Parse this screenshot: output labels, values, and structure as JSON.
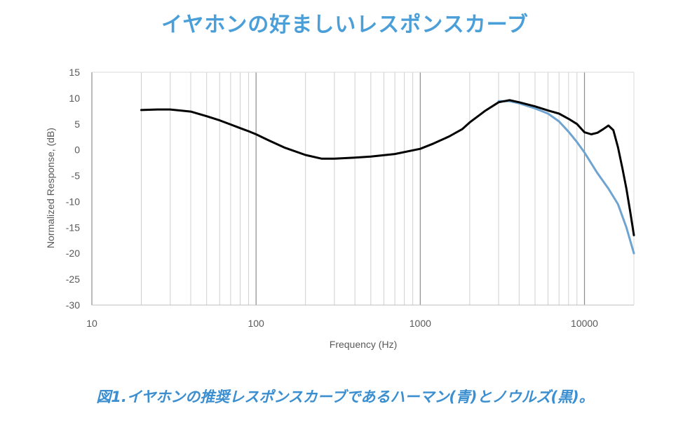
{
  "title": "イヤホンの好ましいレスポンスカーブ",
  "caption": "図1.イヤホンの推奨レスポンスカーブであるハーマン(青)とノウルズ(黒)。",
  "chart_data": {
    "type": "line",
    "xscale": "log",
    "xlim": [
      10,
      20000
    ],
    "ylim": [
      -30,
      15
    ],
    "xticks": [
      10,
      100,
      1000,
      10000
    ],
    "xtick_labels": [
      "10",
      "100",
      "1000",
      "10000"
    ],
    "yticks": [
      15,
      10,
      5,
      0,
      -5,
      -10,
      -15,
      -20,
      -25,
      -30
    ],
    "ytick_labels": [
      "15",
      "10",
      "5",
      "0",
      "-5",
      "-10",
      "-15",
      "-20",
      "-25",
      "-30"
    ],
    "xlabel": "Frequency (Hz)",
    "ylabel": "Normalized Response, (dB)",
    "grid": "vertical log grid",
    "legend": "none",
    "series": [
      {
        "color": "#6fa3d0",
        "x": [
          3000,
          3500,
          4000,
          5000,
          6000,
          7000,
          8000,
          9000,
          10000,
          12000,
          14000,
          16000,
          18000,
          20000
        ],
        "y": [
          9.4,
          9.4,
          9.0,
          8.0,
          7.0,
          5.5,
          3.5,
          1.5,
          -0.5,
          -4.5,
          -7.5,
          -10.5,
          -15.0,
          -20.0
        ]
      },
      {
        "color": "#000000",
        "x": [
          20,
          25,
          30,
          40,
          50,
          60,
          70,
          80,
          90,
          100,
          120,
          150,
          200,
          250,
          300,
          400,
          500,
          700,
          1000,
          1200,
          1500,
          1800,
          2000,
          2500,
          3000,
          3500,
          4000,
          5000,
          6000,
          7000,
          8000,
          9000,
          10000,
          11000,
          12000,
          13000,
          14000,
          15000,
          16000,
          17000,
          18000,
          19000,
          20000
        ],
        "y": [
          7.7,
          7.8,
          7.8,
          7.4,
          6.5,
          5.7,
          4.9,
          4.2,
          3.6,
          3.0,
          1.8,
          0.4,
          -1.0,
          -1.7,
          -1.7,
          -1.5,
          -1.3,
          -0.8,
          0.2,
          1.2,
          2.6,
          4.0,
          5.3,
          7.6,
          9.2,
          9.6,
          9.2,
          8.4,
          7.6,
          7.0,
          6.0,
          5.0,
          3.4,
          3.0,
          3.3,
          4.0,
          4.7,
          3.8,
          0.5,
          -3.5,
          -7.5,
          -12.0,
          -16.5
        ]
      }
    ]
  }
}
